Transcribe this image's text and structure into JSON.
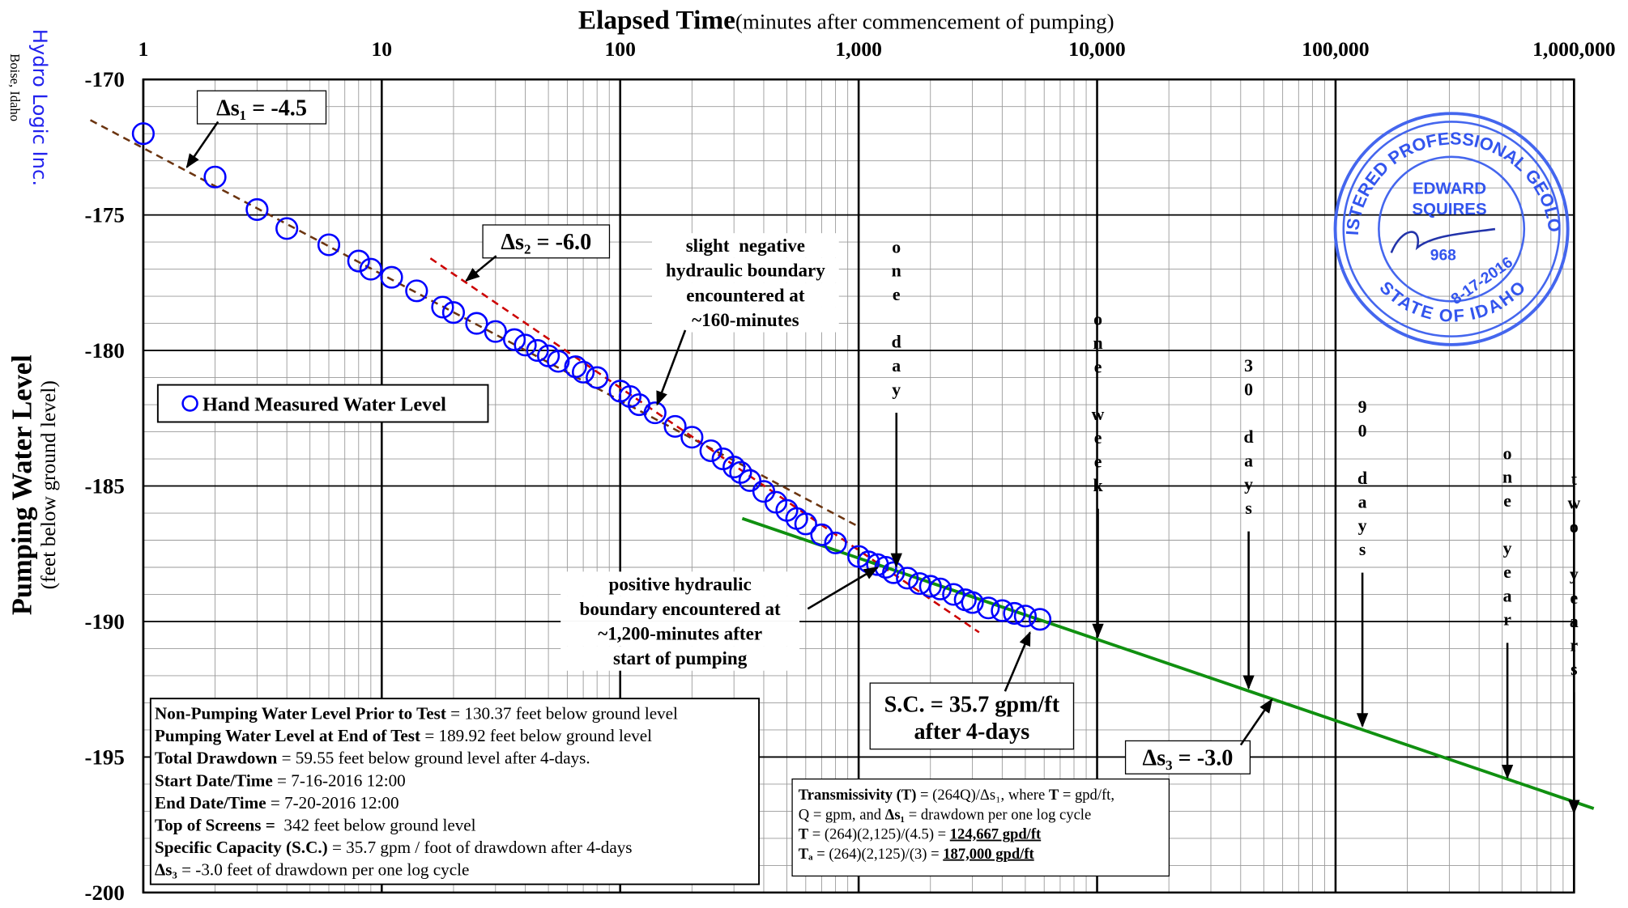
{
  "header": {
    "company": "Hydro Logic Inc.",
    "location": "Boise, Idaho"
  },
  "chart_data": {
    "type": "scatter",
    "title": "Elapsed Time",
    "subtitle": "(minutes after commencement of pumping)",
    "y_label": "Pumping Water Level",
    "y_sublabel": "(feet below ground level)",
    "x_log": true,
    "grid": true,
    "legend": "left",
    "xlim": [
      1,
      1000000
    ],
    "xticks": [
      1,
      10,
      100,
      {
        "value": 1000,
        "label": "1,000"
      },
      {
        "value": 10000,
        "label": "10,000"
      },
      {
        "value": 100000,
        "label": "100,000"
      },
      {
        "value": 1000000,
        "label": "1,000,000"
      }
    ],
    "ylim": [
      -200,
      -170
    ],
    "yticks": [
      -170,
      -175,
      -180,
      -185,
      -190,
      -195,
      -200
    ],
    "series": [
      {
        "name": "Hand Measured Water Level",
        "color": "#0000ff",
        "x": [
          1,
          2,
          3,
          4,
          6,
          8,
          9,
          11,
          14,
          18,
          20,
          25,
          30,
          36,
          40,
          45,
          50,
          55,
          65,
          70,
          80,
          100,
          110,
          120,
          140,
          170,
          200,
          240,
          270,
          300,
          320,
          350,
          400,
          450,
          500,
          550,
          600,
          700,
          800,
          1000,
          1100,
          1200,
          1300,
          1400,
          1600,
          1800,
          2000,
          2200,
          2500,
          2800,
          3000,
          3500,
          4000,
          4500,
          5000,
          5760
        ],
        "values": [
          -172,
          -173.6,
          -174.8,
          -175.5,
          -176.1,
          -176.7,
          -177,
          -177.3,
          -177.8,
          -178.4,
          -178.6,
          -179,
          -179.3,
          -179.6,
          -179.8,
          -180,
          -180.2,
          -180.4,
          -180.6,
          -180.8,
          -181,
          -181.5,
          -181.7,
          -182,
          -182.3,
          -182.8,
          -183.2,
          -183.7,
          -184,
          -184.3,
          -184.5,
          -184.8,
          -185.2,
          -185.6,
          -185.9,
          -186.2,
          -186.4,
          -186.8,
          -187.1,
          -187.6,
          -187.8,
          -187.9,
          -188,
          -188.2,
          -188.4,
          -188.6,
          -188.7,
          -188.8,
          -189,
          -189.2,
          -189.3,
          -189.5,
          -189.6,
          -189.7,
          -189.8,
          -189.92
        ]
      }
    ],
    "trend_lines": [
      {
        "color": "#6b3410",
        "dash": true,
        "x": [
          0.6,
          1000
        ],
        "values": [
          -171.5,
          -186.5
        ]
      },
      {
        "color": "#cc0000",
        "dash": true,
        "x": [
          16,
          3200
        ],
        "values": [
          -176.6,
          -190.4
        ]
      },
      {
        "color": "#109010",
        "dash": false,
        "x": [
          325,
          1210000
        ],
        "values": [
          -186.2,
          -196.9
        ]
      }
    ],
    "slope_labels": [
      "Δs₁ = -4.5",
      "Δs₂ = -6.0",
      "Δs₃ = -3.0"
    ],
    "time_markers": [
      {
        "label": "one day",
        "x": 1440,
        "value": -188.0
      },
      {
        "label": "one week",
        "x": 10080,
        "value": -190.6
      },
      {
        "label": "30 days",
        "x": 43200,
        "value": -192.5
      },
      {
        "label": "90 days",
        "x": 129600,
        "value": -193.9
      },
      {
        "label": "one year",
        "x": 525600,
        "value": -195.8
      },
      {
        "label": "two years",
        "x": 1000000,
        "value": -197.1
      }
    ],
    "notes": {
      "negative_boundary": [
        "slight  negative",
        "hydraulic boundary",
        "encountered at",
        "~160-minutes"
      ],
      "positive_boundary": [
        "positive hydraulic",
        "boundary encountered at",
        "~1,200-minutes after",
        "start of pumping"
      ],
      "specific_capacity": [
        "S.C. = 35.7 gpm/ft",
        "after 4-days"
      ]
    }
  },
  "info_box": [
    [
      {
        "text": "Non-Pumping Water Level Prior to Test",
        "bold": true
      },
      {
        "text": " = 130.37 feet below ground level"
      }
    ],
    [
      {
        "text": "Pumping Water Level at End of Test",
        "bold": true
      },
      {
        "text": " = 189.92 feet below ground level"
      }
    ],
    [
      {
        "text": "Total Drawdown",
        "bold": true
      },
      {
        "text": " = 59.55 feet below ground level after 4-days."
      }
    ],
    [
      {
        "text": "Start Date/Time",
        "bold": true
      },
      {
        "text": " = 7-16-2016 12:00"
      }
    ],
    [
      {
        "text": "End Date/Time",
        "bold": true
      },
      {
        "text": " = 7-20-2016 12:00"
      }
    ],
    [
      {
        "text": "Top of Screens =",
        "bold": true
      },
      {
        "text": "  342 feet below ground level"
      }
    ],
    [
      {
        "text": "Specific Capacity (S.C.)",
        "bold": true
      },
      {
        "text": " = 35.7 gpm / foot of drawdown after 4-days"
      }
    ],
    [
      {
        "text": "Δs₃",
        "bold": true
      },
      {
        "text": " = -3.0 feet of drawdown per one log cycle"
      }
    ]
  ],
  "transmissivity_box": [
    [
      {
        "text": "Transmissivity (T)",
        "bold": true
      },
      {
        "text": " = (264Q)/Δs₁, where "
      },
      {
        "text": "T",
        "bold": true
      },
      {
        "text": " = gpd/ft,"
      }
    ],
    [
      {
        "text": "Q = gpm, and "
      },
      {
        "text": "Δs₁",
        "bold": true
      },
      {
        "text": " = drawdown per one log cycle"
      }
    ],
    [
      {
        "text": "T",
        "bold": true
      },
      {
        "text": " = (264)(2,125)/(4.5) = "
      },
      {
        "text": "124,667 gpd/ft",
        "bold": true,
        "underline": true
      }
    ],
    [
      {
        "text": "Tₐ",
        "bold": true
      },
      {
        "text": " = (264)(2,125)/(3) = "
      },
      {
        "text": "187,000 gpd/ft",
        "bold": true,
        "underline": true
      }
    ]
  ],
  "stamp": {
    "ring_top": "REGISTERED PROFESSIONAL GEOLOGIST",
    "ring_bottom": "STATE OF IDAHO",
    "name_1": "EDWARD",
    "name_2": "SQUIRES",
    "number": "968",
    "date": "8-17-2016"
  }
}
